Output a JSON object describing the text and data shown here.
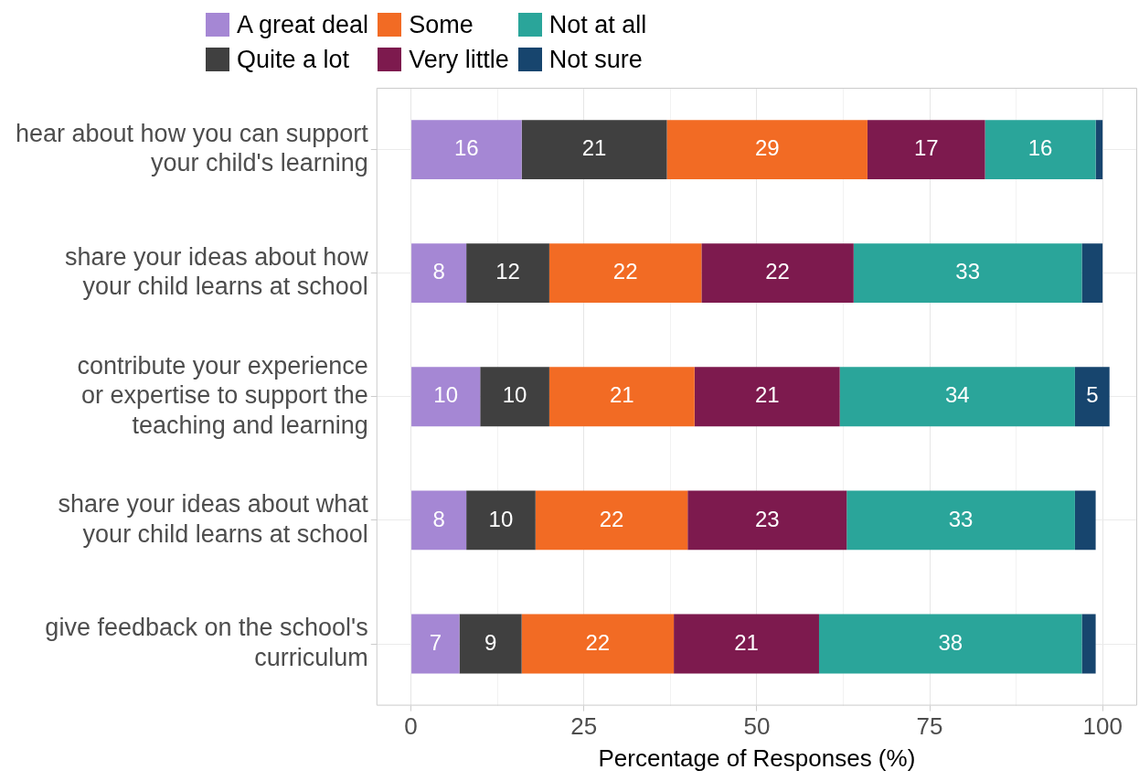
{
  "chart_data": {
    "type": "bar",
    "orientation": "horizontal",
    "stacked": true,
    "categories": [
      "hear about how you can support\nyour child's learning",
      "share your ideas about how\nyour child learns at school",
      "contribute your experience\nor expertise to support the\nteaching and learning",
      "share your ideas about what\nyour child learns at school",
      "give feedback on the school's\ncurriculum"
    ],
    "series": [
      {
        "name": "A great deal",
        "color": "#a587d4",
        "values": [
          16,
          8,
          10,
          8,
          7
        ],
        "value_labels": [
          "16",
          "8",
          "10",
          "8",
          "7"
        ]
      },
      {
        "name": "Quite a lot",
        "color": "#404040",
        "values": [
          21,
          12,
          10,
          10,
          9
        ],
        "value_labels": [
          "21",
          "12",
          "10",
          "10",
          "9"
        ]
      },
      {
        "name": "Some",
        "color": "#f26b24",
        "values": [
          29,
          22,
          21,
          22,
          22
        ],
        "value_labels": [
          "29",
          "22",
          "21",
          "22",
          "22"
        ]
      },
      {
        "name": "Very little",
        "color": "#7d1a4e",
        "values": [
          17,
          22,
          21,
          23,
          21
        ],
        "value_labels": [
          "17",
          "22",
          "21",
          "23",
          "21"
        ]
      },
      {
        "name": "Not at all",
        "color": "#2aa59a",
        "values": [
          16,
          33,
          34,
          33,
          38
        ],
        "value_labels": [
          "16",
          "33",
          "34",
          "33",
          "38"
        ]
      },
      {
        "name": "Not sure",
        "color": "#17456e",
        "values": [
          1,
          3,
          5,
          3,
          2
        ],
        "value_labels": [
          null,
          null,
          "5",
          null,
          null
        ]
      }
    ],
    "xlim": [
      -5,
      105
    ],
    "xticks": [
      0,
      {
        "value": 12.5,
        "label": null
      },
      25,
      {
        "value": 37.5,
        "label": null
      },
      50,
      {
        "value": 62.5,
        "label": null
      },
      75,
      {
        "value": 87.5,
        "label": null
      },
      100
    ],
    "xlabel": "Percentage of Responses (%)",
    "grid": true,
    "legend": "top"
  }
}
